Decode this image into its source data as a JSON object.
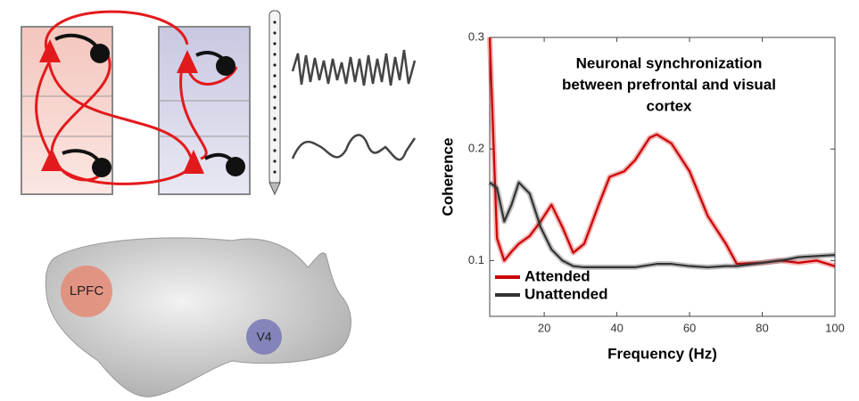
{
  "chart_data": {
    "type": "line",
    "title": [
      "Neuronal synchronization",
      "between prefrontal and visual",
      "cortex"
    ],
    "xlabel": "Frequency (Hz)",
    "ylabel": "Coherence",
    "x": [
      5,
      7,
      9,
      11,
      13,
      16,
      19,
      22,
      25,
      28,
      31,
      35,
      38,
      42,
      45,
      49,
      51,
      55,
      60,
      65,
      70,
      73,
      80,
      85,
      90,
      95,
      100
    ],
    "series": [
      {
        "name": "Attended",
        "color": "#cc0000",
        "values": [
          0.3,
          0.12,
          0.1,
          0.108,
          0.115,
          0.122,
          0.135,
          0.15,
          0.13,
          0.107,
          0.115,
          0.15,
          0.175,
          0.18,
          0.19,
          0.21,
          0.213,
          0.205,
          0.18,
          0.14,
          0.115,
          0.097,
          0.098,
          0.1,
          0.098,
          0.1,
          0.095
        ]
      },
      {
        "name": "Unattended",
        "color": "#333333",
        "values": [
          0.17,
          0.165,
          0.135,
          0.15,
          0.17,
          0.16,
          0.13,
          0.11,
          0.1,
          0.095,
          0.094,
          0.094,
          0.094,
          0.094,
          0.094,
          0.096,
          0.097,
          0.097,
          0.095,
          0.094,
          0.095,
          0.095,
          0.098,
          0.1,
          0.103,
          0.104,
          0.105
        ]
      }
    ],
    "xlim": [
      5,
      100
    ],
    "ylim": [
      0.05,
      0.3
    ],
    "xticks": [
      20,
      40,
      60,
      80,
      100
    ],
    "yticks": [
      0.1,
      0.2,
      0.3
    ],
    "legend": "lower-left"
  },
  "regions": {
    "lpfc": "LPFC",
    "v4": "V4"
  }
}
